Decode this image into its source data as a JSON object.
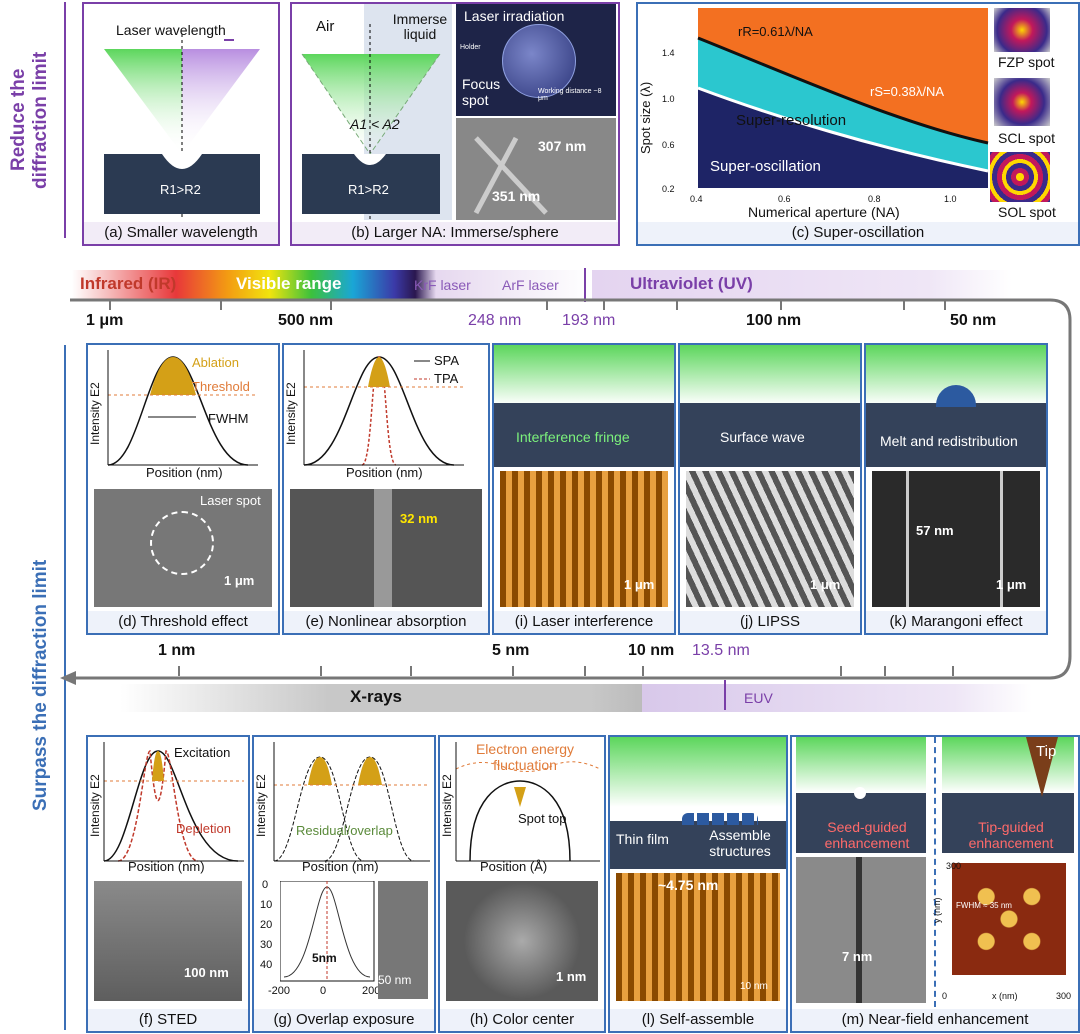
{
  "sidebar": {
    "top": "Reduce the diffraction limit",
    "bottom": "Surpass the diffraction limit"
  },
  "panels": {
    "a": {
      "caption": "(a) Smaller wavelength",
      "label": "Laser wavelength",
      "formula": "R1>R2"
    },
    "b": {
      "caption": "(b) Larger NA: Immerse/sphere",
      "air": "Air",
      "immerse": "Immerse liquid",
      "formula": "A1 < A2",
      "r": "R1>R2",
      "irr": "Laser irradiation",
      "focus": "Focus spot",
      "holder": "Holder",
      "wd": "Working distance ~8 μm",
      "m1": "307 nm",
      "m2": "351 nm"
    },
    "c": {
      "caption": "(c) Super-oscillation",
      "ylabel": "Spot size (λ)",
      "xlabel": "Numerical aperture (NA)",
      "rr": "rR=0.61λ/NA",
      "rs": "rS=0.38λ/NA",
      "sr": "Super-resolution",
      "so": "Super-oscillation",
      "fzp": "FZP spot",
      "scl": "SCL spot",
      "sol": "SOL spot",
      "yt": [
        "1.4",
        "1.0",
        "0.6",
        "0.2"
      ],
      "xt": [
        "0.4",
        "0.6",
        "0.8",
        "1.0"
      ]
    },
    "d": {
      "caption": "(d) Threshold effect",
      "ablation": "Ablation",
      "threshold": "Threshold",
      "fwhm": "FWHM",
      "xlabel": "Position (nm)",
      "ylabel": "Intensity E2",
      "spot": "Laser spot",
      "scale": "1 μm"
    },
    "e": {
      "caption": "(e) Nonlinear absorption",
      "spa": "SPA",
      "tpa": "TPA",
      "xlabel": "Position (nm)",
      "ylabel": "Intensity E2",
      "m": "32 nm"
    },
    "i": {
      "caption": "(i) Laser interference",
      "txt": "Interference fringe",
      "scale": "1 μm"
    },
    "j": {
      "caption": "(j) LIPSS",
      "txt": "Surface wave",
      "scale": "1 μm"
    },
    "k": {
      "caption": "(k) Marangoni effect",
      "txt": "Melt and redistribution",
      "m": "57 nm",
      "scale": "1 μm"
    },
    "f": {
      "caption": "(f) STED",
      "ex": "Excitation",
      "dep": "Depletion",
      "xlabel": "Position (nm)",
      "ylabel": "Intensity E2",
      "scale": "100 nm"
    },
    "g": {
      "caption": "(g) Overlap exposure",
      "res": "Residual/overlap",
      "xlabel": "Position (nm)",
      "ylabel": "Intensity E2",
      "m": "5nm",
      "scale": "50 nm",
      "yt": [
        "0",
        "10",
        "20",
        "30",
        "40"
      ],
      "xt": [
        "-200",
        "0",
        "200"
      ]
    },
    "h": {
      "caption": "(h) Color center",
      "fl": "Electron energy fluctuation",
      "top": "Spot top",
      "xlabel": "Position (Å)",
      "ylabel": "Intensity E2",
      "scale": "1 nm"
    },
    "l": {
      "caption": "(l) Self-assemble",
      "tf": "Thin film",
      "as": "Assemble structures",
      "m": "~4.75 nm",
      "scale": "10 nm"
    },
    "m": {
      "caption": "(m) Near-field enhancement",
      "tip": "Tip",
      "seed": "Seed-guided enhancement",
      "tipg": "Tip-guided enhancement",
      "m": "7 nm",
      "fwhm": "FWHM ≈ 35 nm",
      "xl": "x (nm)",
      "yl": "y (nm)",
      "t300": "300",
      "t0": "0",
      "t300b": "300"
    }
  },
  "band": {
    "ir": "Infrared (IR)",
    "vis": "Visible range",
    "krf": "KrF laser",
    "arf": "ArF laser",
    "uv": "Ultraviolet (UV)",
    "xray": "X-rays",
    "euv": "EUV"
  },
  "wl_top": {
    "a": "1 μm",
    "b": "500 nm",
    "c": "248 nm",
    "d": "193 nm",
    "e": "100 nm",
    "f": "50 nm"
  },
  "wl_mid": {
    "a": "1 nm",
    "b": "5 nm",
    "c": "10 nm",
    "d": "13.5 nm"
  }
}
